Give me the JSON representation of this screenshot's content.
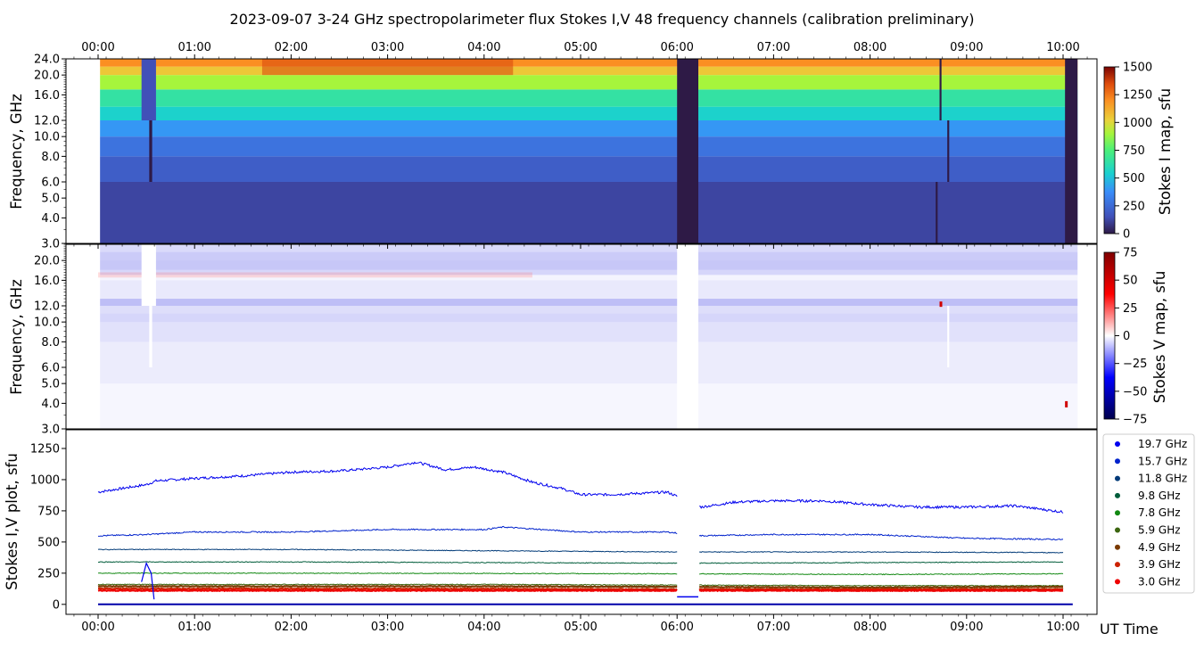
{
  "title": "2023-09-07     3-24 GHz spectropolarimeter flux   Stokes I,V   48 frequency channels   (calibration preliminary)",
  "chart_data": [
    {
      "id": "stokes-i-map",
      "type": "heatmap",
      "ylabel": "Frequency, GHz",
      "colorbar_label": "Stokes I map, sfu",
      "colorbar_ticks": [
        "0",
        "250",
        "500",
        "750",
        "1000",
        "1250",
        "1500"
      ],
      "colorbar_range": [
        0,
        1500
      ],
      "y_ticks": [
        "3.0",
        "4.0",
        "5.0",
        "6.0",
        "8.0",
        "10.0",
        "12.0",
        "16.0",
        "20.0",
        "24.0"
      ],
      "x_ticks_top": [
        "00:00",
        "01:00",
        "02:00",
        "03:00",
        "04:00",
        "05:00",
        "06:00",
        "07:00",
        "08:00",
        "09:00",
        "10:00"
      ],
      "data_window_hours": [
        0.02,
        10.15
      ],
      "gaps_hours": [
        [
          6.0,
          6.22
        ],
        [
          10.02,
          10.15
        ]
      ],
      "bands": [
        {
          "f_lo": 3.0,
          "f_hi": 6.0,
          "value": 120
        },
        {
          "f_lo": 6.0,
          "f_hi": 8.0,
          "value": 200
        },
        {
          "f_lo": 8.0,
          "f_hi": 10.0,
          "value": 280
        },
        {
          "f_lo": 10.0,
          "f_hi": 12.0,
          "value": 400
        },
        {
          "f_lo": 12.0,
          "f_hi": 14.0,
          "value": 550
        },
        {
          "f_lo": 14.0,
          "f_hi": 17.0,
          "value": 650
        },
        {
          "f_lo": 17.0,
          "f_hi": 20.0,
          "value": 900
        },
        {
          "f_lo": 20.0,
          "f_hi": 22.0,
          "value": 1050
        },
        {
          "f_lo": 22.0,
          "f_hi": 24.0,
          "value": 1200
        }
      ]
    },
    {
      "id": "stokes-v-map",
      "type": "heatmap",
      "ylabel": "Frequency, GHz",
      "colorbar_label": "Stokes V map, sfu",
      "colorbar_ticks": [
        "−75",
        "−50",
        "−25",
        "0",
        "25",
        "50",
        "75"
      ],
      "colorbar_range": [
        -75,
        75
      ],
      "y_ticks": [
        "3.0",
        "4.0",
        "5.0",
        "6.0",
        "8.0",
        "10.0",
        "12.0",
        "16.0",
        "20.0"
      ],
      "gaps_hours": [
        [
          6.0,
          6.22
        ]
      ]
    },
    {
      "id": "stokes-iv-plot",
      "type": "line",
      "ylabel": "Stokes I,V plot, sfu",
      "xlabel": "UT Time",
      "ylim": [
        -80,
        1400
      ],
      "y_ticks": [
        "0",
        "250",
        "500",
        "750",
        "1000",
        "1250"
      ],
      "x_ticks": [
        "00:00",
        "01:00",
        "02:00",
        "03:00",
        "04:00",
        "05:00",
        "06:00",
        "07:00",
        "08:00",
        "09:00",
        "10:00"
      ],
      "series": [
        {
          "name": "19.7 GHz",
          "color": "#0000ee",
          "points": [
            [
              0,
              900
            ],
            [
              0.5,
              960
            ],
            [
              0.6,
              990
            ],
            [
              1.0,
              1010
            ],
            [
              1.5,
              1030
            ],
            [
              2.0,
              1060
            ],
            [
              2.5,
              1070
            ],
            [
              3.0,
              1100
            ],
            [
              3.3,
              1140
            ],
            [
              3.6,
              1080
            ],
            [
              3.9,
              1100
            ],
            [
              4.2,
              1060
            ],
            [
              4.5,
              980
            ],
            [
              4.8,
              930
            ],
            [
              5.0,
              880
            ],
            [
              5.3,
              880
            ],
            [
              5.6,
              890
            ],
            [
              5.9,
              900
            ],
            [
              6.25,
              780
            ],
            [
              6.6,
              820
            ],
            [
              7.0,
              830
            ],
            [
              7.5,
              830
            ],
            [
              8.0,
              800
            ],
            [
              8.5,
              780
            ],
            [
              9.0,
              780
            ],
            [
              9.5,
              790
            ],
            [
              10.0,
              740
            ]
          ]
        },
        {
          "name": "15.7 GHz",
          "color": "#0022cc",
          "points": [
            [
              0,
              550
            ],
            [
              0.5,
              560
            ],
            [
              1.0,
              580
            ],
            [
              2.0,
              580
            ],
            [
              3.0,
              600
            ],
            [
              4.0,
              600
            ],
            [
              4.2,
              620
            ],
            [
              5.0,
              580
            ],
            [
              5.9,
              580
            ],
            [
              6.25,
              550
            ],
            [
              7.0,
              560
            ],
            [
              8.0,
              560
            ],
            [
              9.0,
              530
            ],
            [
              10.0,
              520
            ]
          ]
        },
        {
          "name": "11.8 GHz",
          "color": "#003a78",
          "points": [
            [
              0,
              440
            ],
            [
              2.0,
              440
            ],
            [
              4.0,
              430
            ],
            [
              6.0,
              420
            ],
            [
              8.0,
              420
            ],
            [
              10.0,
              415
            ]
          ]
        },
        {
          "name": "9.8 GHz",
          "color": "#005c3a",
          "points": [
            [
              0,
              340
            ],
            [
              2.0,
              340
            ],
            [
              4.0,
              335
            ],
            [
              6.0,
              330
            ],
            [
              8.0,
              335
            ],
            [
              10.0,
              340
            ]
          ]
        },
        {
          "name": "7.8 GHz",
          "color": "#118811",
          "points": [
            [
              0,
              250
            ],
            [
              2.0,
              250
            ],
            [
              4.0,
              248
            ],
            [
              6.0,
              245
            ],
            [
              8.0,
              240
            ],
            [
              10.0,
              245
            ]
          ]
        },
        {
          "name": "5.9 GHz",
          "color": "#3c6610",
          "points": [
            [
              0,
              160
            ],
            [
              2.0,
              160
            ],
            [
              4.0,
              160
            ],
            [
              6.0,
              155
            ],
            [
              8.0,
              150
            ],
            [
              10.0,
              150
            ]
          ]
        },
        {
          "name": "4.9 GHz",
          "color": "#7a3a00",
          "points": [
            [
              0,
              145
            ],
            [
              2.0,
              145
            ],
            [
              4.0,
              145
            ],
            [
              6.0,
              140
            ],
            [
              8.0,
              135
            ],
            [
              10.0,
              140
            ]
          ]
        },
        {
          "name": "3.9 GHz",
          "color": "#cc2200",
          "points": [
            [
              0,
              125
            ],
            [
              2.0,
              125
            ],
            [
              4.0,
              125
            ],
            [
              6.0,
              120
            ],
            [
              8.0,
              120
            ],
            [
              10.0,
              120
            ]
          ]
        },
        {
          "name": "3.0 GHz",
          "color": "#ee0000",
          "points": [
            [
              0,
              110
            ],
            [
              2.0,
              110
            ],
            [
              4.0,
              110
            ],
            [
              6.0,
              110
            ],
            [
              8.0,
              110
            ],
            [
              10.0,
              110
            ]
          ]
        }
      ]
    }
  ]
}
